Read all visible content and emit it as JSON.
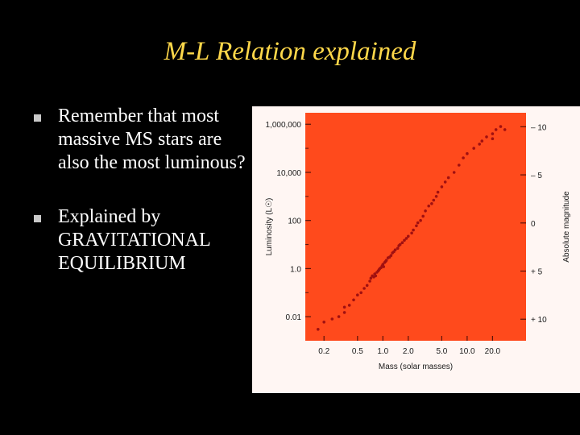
{
  "slide": {
    "title": "M-L Relation explained",
    "bullets": [
      "Remember that most massive MS stars are also the most luminous?",
      "Explained by GRAVITATIONAL EQUILIBRIUM"
    ]
  },
  "colors": {
    "background": "#000000",
    "title": "#ffd84a",
    "text": "#ffffff",
    "plot_area": "#ff4a1c",
    "points": "#a01010"
  },
  "chart_data": {
    "type": "scatter",
    "title": "",
    "xlabel": "Mass (solar masses)",
    "ylabel": "Luminosity (L☉)",
    "y2label": "Absolute magnitude",
    "x_scale": "log",
    "y_scale": "log",
    "xlim": [
      0.12,
      50
    ],
    "ylim": [
      0.001,
      3000000
    ],
    "x_ticks": [
      0.2,
      0.5,
      1.0,
      2.0,
      5.0,
      10.0,
      20.0
    ],
    "x_tick_labels": [
      "0.2",
      "0.5",
      "1.0",
      "2.0",
      "5.0",
      "10.0",
      "20.0"
    ],
    "y_ticks": [
      0.01,
      1,
      100,
      10000,
      1000000
    ],
    "y_tick_labels": [
      "0.01",
      "1.0",
      "100",
      "10,000",
      "1,000,000"
    ],
    "y2_ticks": [
      -10,
      -5,
      0,
      5,
      10
    ],
    "y2_tick_labels": [
      "– 10",
      "– 5",
      "0",
      "+ 5",
      "+ 10"
    ],
    "grid": false,
    "series": [
      {
        "points": [
          [
            0.17,
            0.003
          ],
          [
            0.2,
            0.006
          ],
          [
            0.25,
            0.008
          ],
          [
            0.3,
            0.01
          ],
          [
            0.35,
            0.015
          ],
          [
            0.35,
            0.025
          ],
          [
            0.4,
            0.03
          ],
          [
            0.45,
            0.05
          ],
          [
            0.5,
            0.08
          ],
          [
            0.55,
            0.1
          ],
          [
            0.6,
            0.15
          ],
          [
            0.65,
            0.2
          ],
          [
            0.7,
            0.3
          ],
          [
            0.72,
            0.4
          ],
          [
            0.75,
            0.5
          ],
          [
            0.78,
            0.45
          ],
          [
            0.8,
            0.6
          ],
          [
            0.82,
            0.5
          ],
          [
            0.85,
            0.7
          ],
          [
            0.88,
            0.8
          ],
          [
            0.9,
            0.9
          ],
          [
            0.92,
            1.0
          ],
          [
            0.95,
            1.1
          ],
          [
            0.98,
            1.3
          ],
          [
            1.0,
            1.5
          ],
          [
            1.02,
            1.2
          ],
          [
            1.05,
            1.8
          ],
          [
            1.08,
            2.0
          ],
          [
            1.1,
            2.2
          ],
          [
            1.15,
            2.8
          ],
          [
            1.2,
            3.0
          ],
          [
            1.25,
            3.5
          ],
          [
            1.3,
            4.5
          ],
          [
            1.35,
            5.0
          ],
          [
            1.4,
            6.0
          ],
          [
            1.5,
            7.0
          ],
          [
            1.55,
            9.0
          ],
          [
            1.6,
            10
          ],
          [
            1.7,
            12
          ],
          [
            1.8,
            15
          ],
          [
            1.9,
            18
          ],
          [
            2.0,
            22
          ],
          [
            2.2,
            30
          ],
          [
            2.3,
            40
          ],
          [
            2.5,
            60
          ],
          [
            2.6,
            80
          ],
          [
            2.8,
            100
          ],
          [
            3.0,
            150
          ],
          [
            3.2,
            250
          ],
          [
            3.5,
            400
          ],
          [
            3.8,
            500
          ],
          [
            4.0,
            700
          ],
          [
            4.3,
            1000
          ],
          [
            4.5,
            1500
          ],
          [
            5.0,
            2500
          ],
          [
            5.5,
            4000
          ],
          [
            6.0,
            6000
          ],
          [
            7.0,
            10000
          ],
          [
            8.0,
            20000
          ],
          [
            9.0,
            40000
          ],
          [
            10.0,
            60000
          ],
          [
            12.0,
            100000
          ],
          [
            15.0,
            200000
          ],
          [
            17.0,
            300000
          ],
          [
            20.0,
            400000
          ],
          [
            22.0,
            600000
          ],
          [
            25.0,
            800000
          ],
          [
            28.0,
            600000
          ],
          [
            20.0,
            250000
          ],
          [
            14.0,
            150000
          ]
        ]
      }
    ]
  }
}
